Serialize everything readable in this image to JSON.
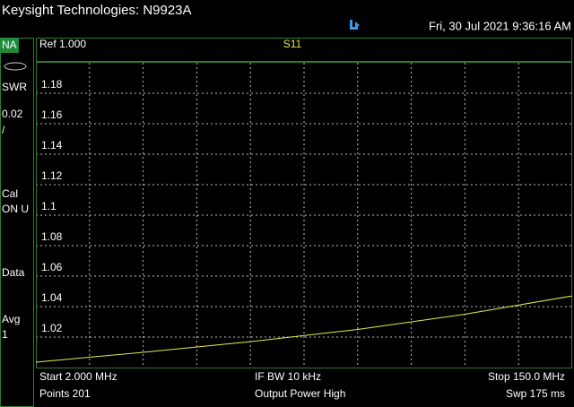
{
  "header": {
    "title": "Keysight Technologies: N9923A",
    "datetime": "Fri, 30 Jul 2021 9:36:16 AM"
  },
  "sidebar": [
    "NA",
    "SWR",
    "0.02",
    "/",
    "Cal",
    "ON U",
    "Data",
    "Avg",
    "1"
  ],
  "plot_header": {
    "ref": "Ref 1.000"
  },
  "chart_data": {
    "type": "line",
    "title": "S11",
    "x": [
      2,
      31.6,
      61.2,
      90.8,
      120.4,
      150
    ],
    "values": [
      1.0035,
      1.01,
      1.017,
      1.025,
      1.035,
      1.047
    ],
    "color": "#e8e84a",
    "xlim": [
      2,
      150
    ],
    "ylim": [
      1.0,
      1.2
    ],
    "yticks": [
      1.02,
      1.04,
      1.06,
      1.08,
      1.1,
      1.12,
      1.14,
      1.16,
      1.18
    ],
    "grid": true
  },
  "footer": {
    "start": "Start 2.000 MHz",
    "ifbw": "IF BW 10 kHz",
    "stop": "Stop 150.0 MHz",
    "points": "Points 201",
    "power": "Output Power High",
    "sweep": "Swp 175 ms"
  }
}
